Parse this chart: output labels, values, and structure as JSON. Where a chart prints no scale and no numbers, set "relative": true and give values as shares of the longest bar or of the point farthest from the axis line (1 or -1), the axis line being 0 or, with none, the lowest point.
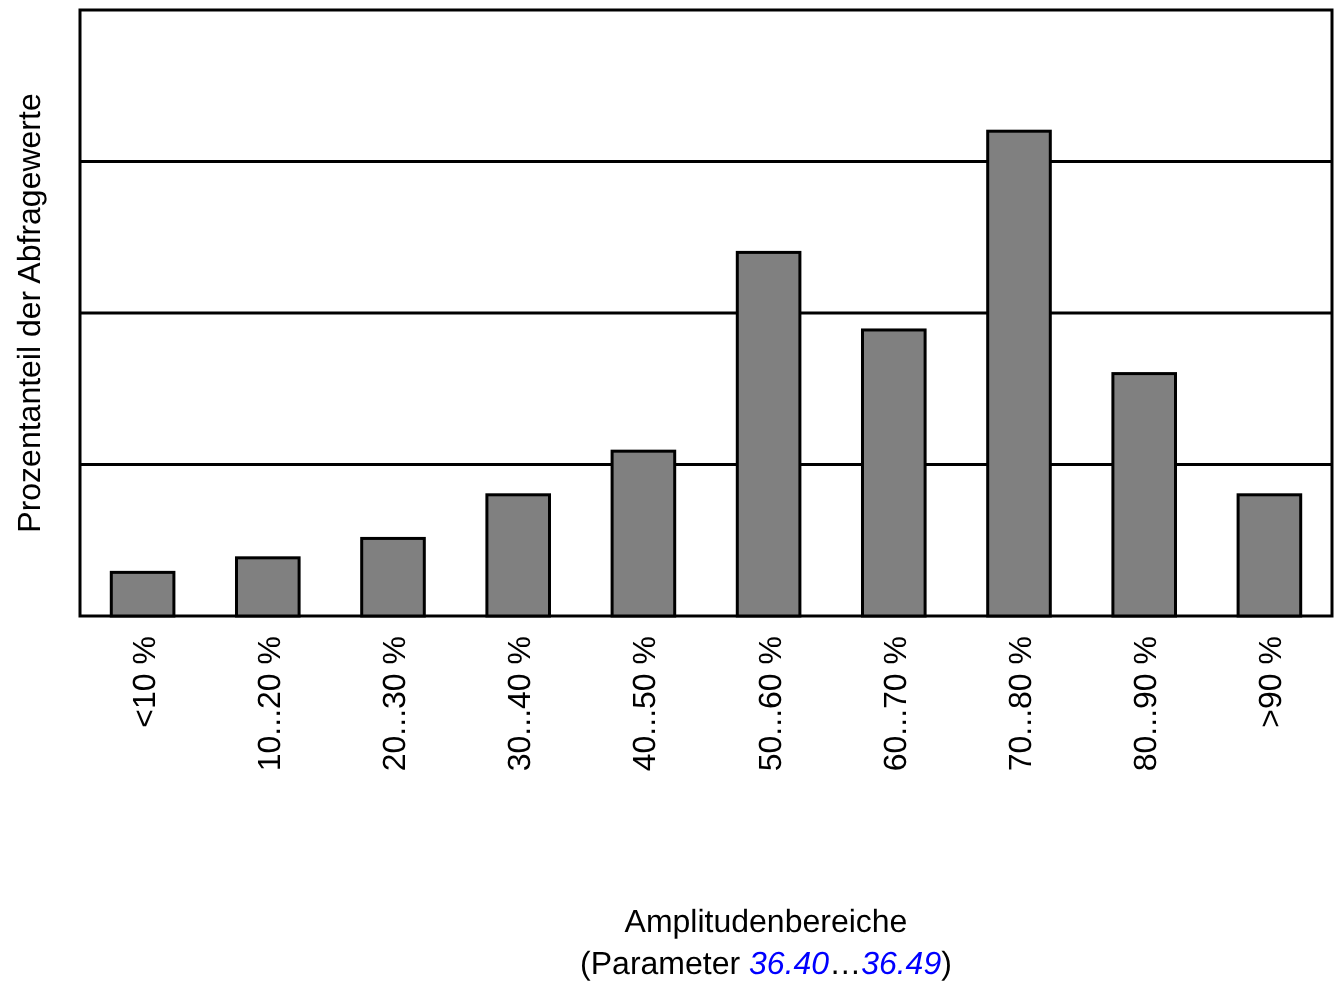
{
  "chart_data": {
    "type": "bar",
    "relative": true,
    "ylabel": "Prozentanteil der Abfragewerte",
    "xlabel": "Amplitudenbereiche\n(Parameter 36.40…36.49)",
    "categories": [
      "<10 %",
      "10...20 %",
      "20...30 %",
      "30...40 %",
      "40...50 %",
      "50...60 %",
      "60...70 %",
      "70...80 %",
      "80...90 %",
      ">90 %"
    ],
    "values": [
      0.09,
      0.12,
      0.16,
      0.25,
      0.34,
      0.75,
      0.59,
      1,
      0.5,
      0.25
    ],
    "color": "#808080",
    "grid": "y"
  }
}
